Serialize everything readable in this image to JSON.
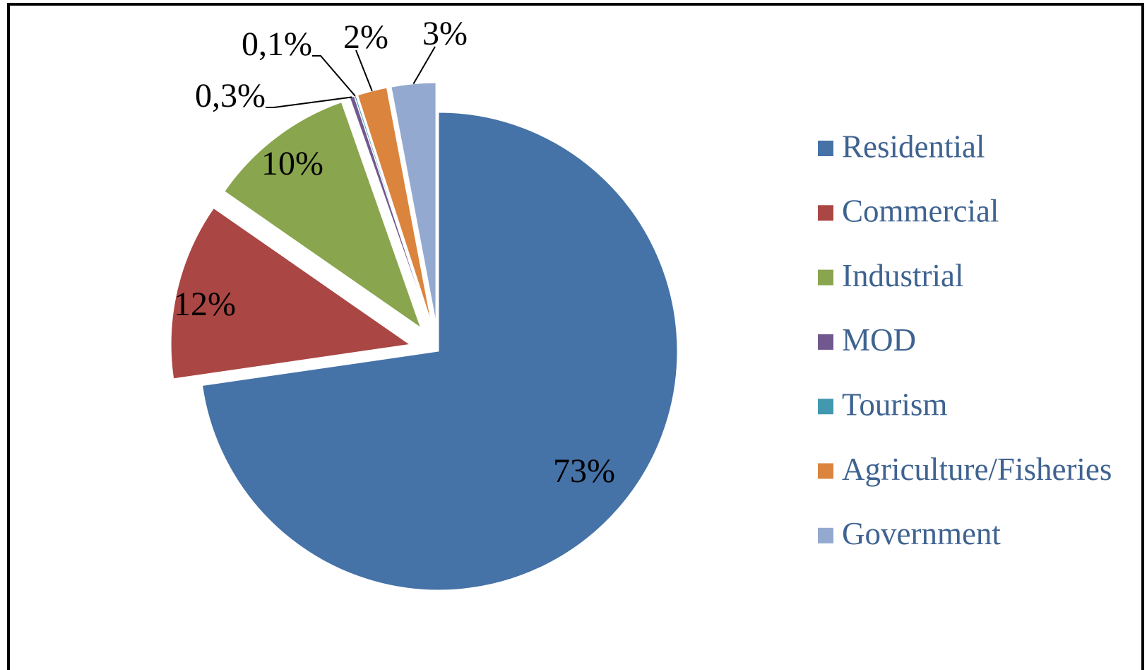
{
  "chart_data": {
    "type": "pie",
    "categories": [
      "Residential",
      "Commercial",
      "Industrial",
      "MOD",
      "Tourism",
      "Agriculture/Fisheries",
      "Government"
    ],
    "values": [
      73,
      12,
      10,
      0.3,
      0.1,
      2,
      3
    ],
    "value_labels": [
      "73%",
      "12%",
      "10%",
      "0,3%",
      "0,1%",
      "2%",
      "3%"
    ],
    "colors": [
      "#4572a7",
      "#aa4643",
      "#89a54e",
      "#71588f",
      "#4198af",
      "#db843d",
      "#93a9cf"
    ],
    "legend": "right"
  }
}
